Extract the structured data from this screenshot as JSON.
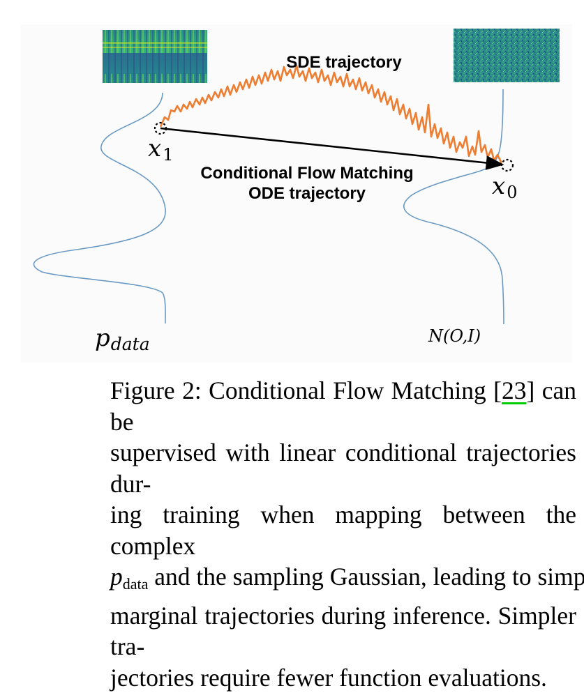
{
  "figure": {
    "sde_label": "SDE trajectory",
    "ode_label_line1": "Conditional Flow Matching",
    "ode_label_line2": "ODE trajectory",
    "x1_base": "x",
    "x1_sub": "1",
    "x0_base": "x",
    "x0_sub": "0",
    "pdata_base": "p",
    "pdata_sub": "data",
    "noise_label": "N(O,I)",
    "colors": {
      "sde_path": "#ed7d31",
      "density_curve": "#6a9ac4",
      "ode_arrow": "#000000"
    },
    "images": [
      "mel-spectrogram",
      "gaussian-noise"
    ]
  },
  "caption": {
    "line1_prefix": "Figure 2: Conditional Flow Matching [",
    "cite": "23",
    "line1_suffix": "] can be",
    "line2": "supervised with linear conditional trajectories dur-",
    "line3": "ing training when mapping between the complex",
    "line4_sym_base": "p",
    "line4_sym_sub": "data",
    "line4_rest": " and the sampling Gaussian, leading to simpler",
    "line5": "marginal trajectories during inference. Simpler tra-",
    "line6": "jectories require fewer function evaluations."
  }
}
